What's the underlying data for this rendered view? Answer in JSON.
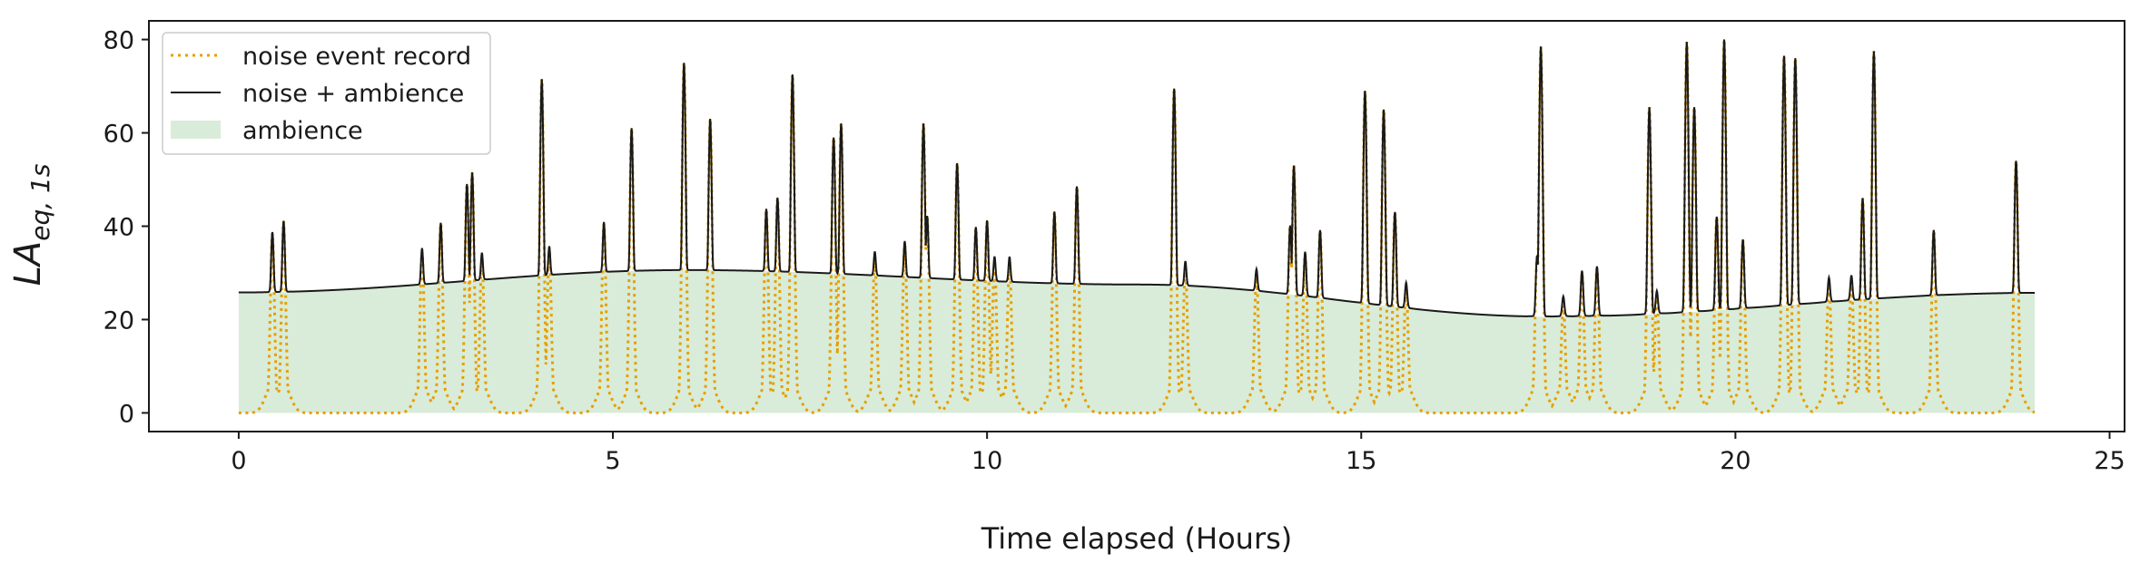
{
  "chart_data": {
    "type": "line",
    "title": "",
    "xlabel": "Time elapsed (Hours)",
    "ylabel_main": "LA",
    "ylabel_sub": "eq, 1s",
    "xlim": [
      -1.2,
      25.2
    ],
    "ylim": [
      -4,
      84
    ],
    "xticks": [
      0,
      5,
      10,
      15,
      20,
      25
    ],
    "yticks": [
      0,
      20,
      40,
      60,
      80
    ],
    "grid": false,
    "legend_position": "top-left",
    "colors": {
      "noise_event": "#e69f00",
      "noise_ambience": "#1a1a1a",
      "ambience": "#d9ecd9"
    },
    "series": [
      {
        "name": "noise event record",
        "style": "dotted",
        "baseline": 0,
        "events": [
          [
            0.45,
            38.5
          ],
          [
            0.6,
            41
          ],
          [
            2.45,
            34.5
          ],
          [
            2.7,
            40.5
          ],
          [
            3.05,
            49
          ],
          [
            3.12,
            51.5
          ],
          [
            3.25,
            33
          ],
          [
            4.05,
            71.5
          ],
          [
            4.15,
            34.5
          ],
          [
            4.88,
            40.5
          ],
          [
            5.25,
            61
          ],
          [
            5.95,
            75
          ],
          [
            6.3,
            63
          ],
          [
            7.05,
            43.5
          ],
          [
            7.2,
            46
          ],
          [
            7.4,
            72.5
          ],
          [
            7.95,
            59
          ],
          [
            8.05,
            62
          ],
          [
            8.5,
            33
          ],
          [
            8.9,
            36
          ],
          [
            9.15,
            62
          ],
          [
            9.2,
            42
          ],
          [
            9.6,
            53.5
          ],
          [
            9.85,
            39.5
          ],
          [
            10.0,
            41
          ],
          [
            10.1,
            32
          ],
          [
            10.3,
            32
          ],
          [
            10.9,
            43
          ],
          [
            11.2,
            48.5
          ],
          [
            12.5,
            69.5
          ],
          [
            12.65,
            31
          ],
          [
            13.6,
            29
          ],
          [
            14.05,
            40
          ],
          [
            14.1,
            53
          ],
          [
            14.25,
            34
          ],
          [
            14.45,
            39
          ],
          [
            15.05,
            69
          ],
          [
            15.3,
            65
          ],
          [
            15.45,
            43
          ],
          [
            15.6,
            26.5
          ],
          [
            17.35,
            33.5
          ],
          [
            17.4,
            78.5
          ],
          [
            17.7,
            23
          ],
          [
            17.95,
            30
          ],
          [
            18.15,
            31
          ],
          [
            18.85,
            65.5
          ],
          [
            18.95,
            24.5
          ],
          [
            19.35,
            79.5
          ],
          [
            19.45,
            65.5
          ],
          [
            19.75,
            42
          ],
          [
            19.85,
            80
          ],
          [
            20.1,
            37
          ],
          [
            20.65,
            76.5
          ],
          [
            20.8,
            76
          ],
          [
            21.25,
            27.5
          ],
          [
            21.55,
            28
          ],
          [
            21.7,
            46
          ],
          [
            21.85,
            77.5
          ],
          [
            22.65,
            39
          ],
          [
            23.75,
            54
          ]
        ]
      },
      {
        "name": "noise + ambience",
        "style": "solid",
        "ambience_curve": [
          [
            0,
            25.8
          ],
          [
            6,
            30.6
          ],
          [
            12,
            27.5
          ],
          [
            17.5,
            20.6
          ],
          [
            24,
            25.7
          ]
        ]
      },
      {
        "name": "ambience",
        "style": "fill"
      }
    ]
  }
}
